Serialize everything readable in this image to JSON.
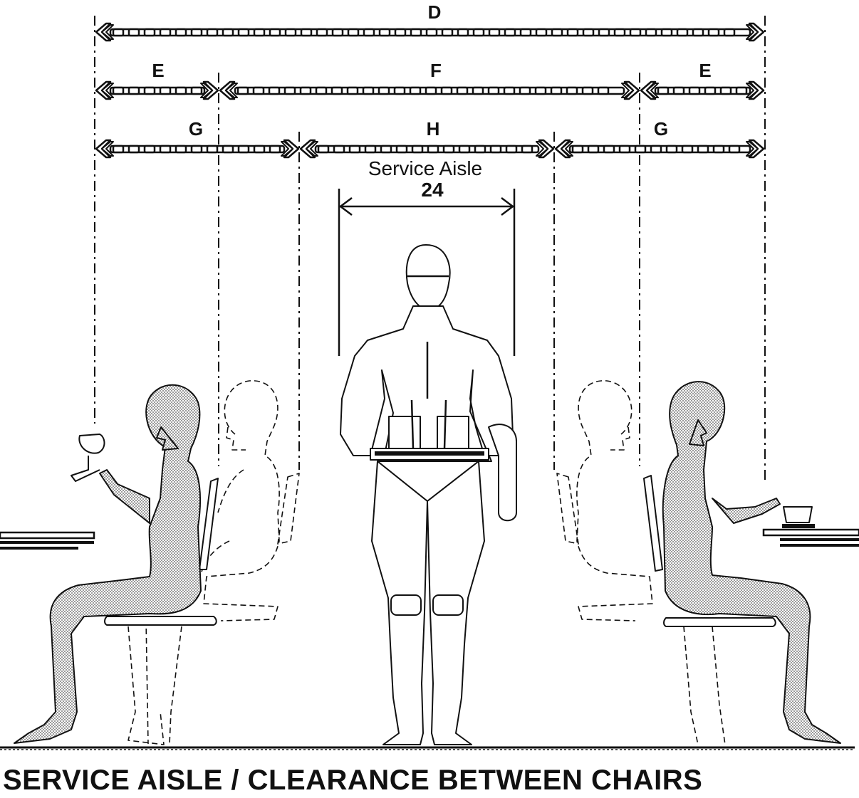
{
  "diagram": {
    "dimension_labels": {
      "d": "D",
      "e_left": "E",
      "f": "F",
      "e_right": "E",
      "g_left": "G",
      "h": "H",
      "g_right": "G"
    },
    "service_aisle": {
      "label": "Service Aisle",
      "value": "24"
    },
    "title": "SERVICE AISLE / CLEARANCE BETWEEN CHAIRS"
  }
}
